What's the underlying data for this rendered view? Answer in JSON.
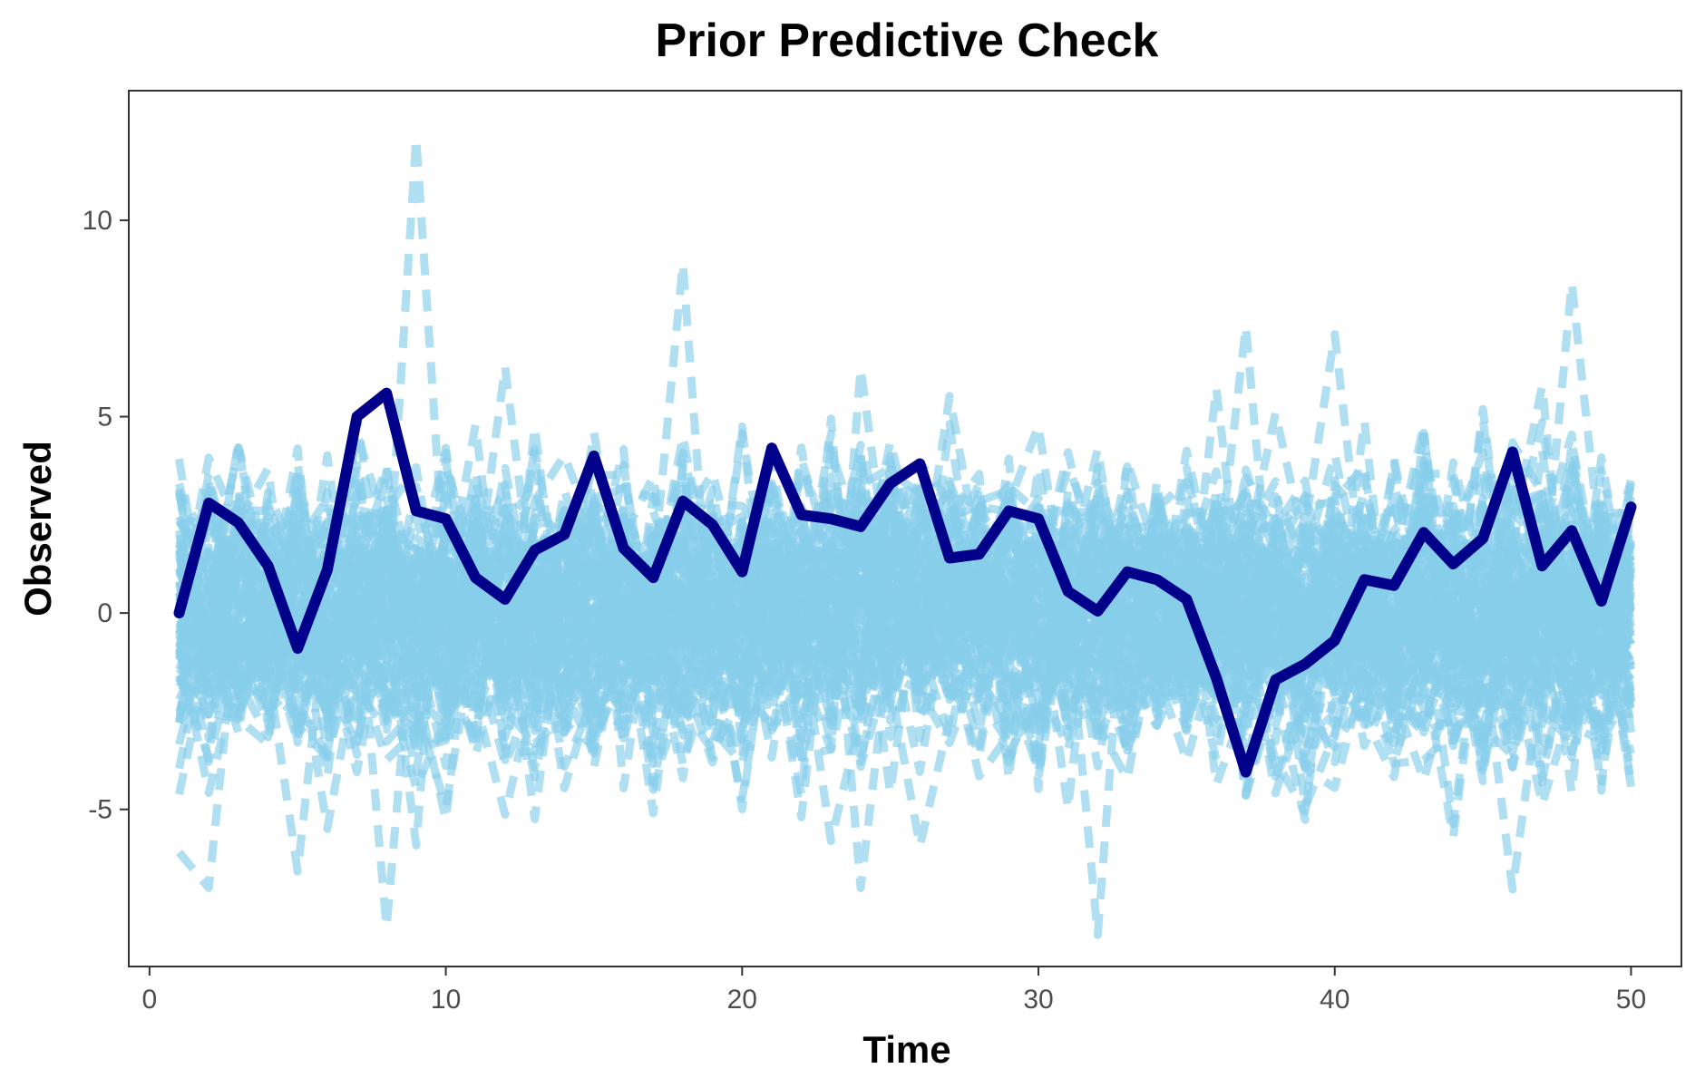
{
  "chart_data": {
    "type": "line",
    "title": "Prior Predictive Check",
    "xlabel": "Time",
    "ylabel": "Observed",
    "xlim": [
      -0.7,
      51.7
    ],
    "ylim": [
      -9.0,
      13.3
    ],
    "x_ticks": [
      0,
      10,
      20,
      30,
      40,
      50
    ],
    "y_ticks": [
      -5,
      0,
      5,
      10
    ],
    "grid": false,
    "legend": "none",
    "colors": {
      "simulated": "#87ceeb",
      "observed": "#00008b"
    },
    "simulated_draws": {
      "count": 100,
      "line_style": "dashed",
      "x_range": [
        1,
        50
      ],
      "bulk_range": [
        -3.5,
        3.5
      ],
      "extremes": [
        {
          "x": 9,
          "y": 12.1
        },
        {
          "x": 18,
          "y": 8.9
        },
        {
          "x": 48,
          "y": 8.4
        },
        {
          "x": 37,
          "y": 7.3
        },
        {
          "x": 40,
          "y": 7.1
        },
        {
          "x": 8,
          "y": -8.0
        },
        {
          "x": 32,
          "y": -8.2
        },
        {
          "x": 2,
          "y": -7.0
        },
        {
          "x": 24,
          "y": -7.0
        },
        {
          "x": 44,
          "y": -5.7
        }
      ]
    },
    "series": [
      {
        "x": [
          1,
          2,
          3,
          4,
          5,
          6,
          7,
          8,
          9,
          10,
          11,
          12,
          13,
          14,
          15,
          16,
          17,
          18,
          19,
          20,
          21,
          22,
          23,
          24,
          25,
          26,
          27,
          28,
          29,
          30,
          31,
          32,
          33,
          34,
          35,
          36,
          37,
          38,
          39,
          40,
          41,
          42,
          43,
          44,
          45,
          46,
          47,
          48,
          49,
          50
        ],
        "values": [
          0.0,
          2.8,
          2.3,
          1.2,
          -0.9,
          1.1,
          5.0,
          5.6,
          2.6,
          2.4,
          0.9,
          0.35,
          1.6,
          2.0,
          4.0,
          1.65,
          0.9,
          2.85,
          2.25,
          1.05,
          4.2,
          2.5,
          2.4,
          2.2,
          3.3,
          3.8,
          1.4,
          1.5,
          2.6,
          2.4,
          0.55,
          0.05,
          1.05,
          0.85,
          0.35,
          -1.65,
          -4.05,
          -1.7,
          -1.3,
          -0.7,
          0.85,
          0.7,
          2.05,
          1.25,
          1.9,
          4.1,
          1.2,
          2.1,
          0.3,
          2.7
        ]
      }
    ]
  }
}
